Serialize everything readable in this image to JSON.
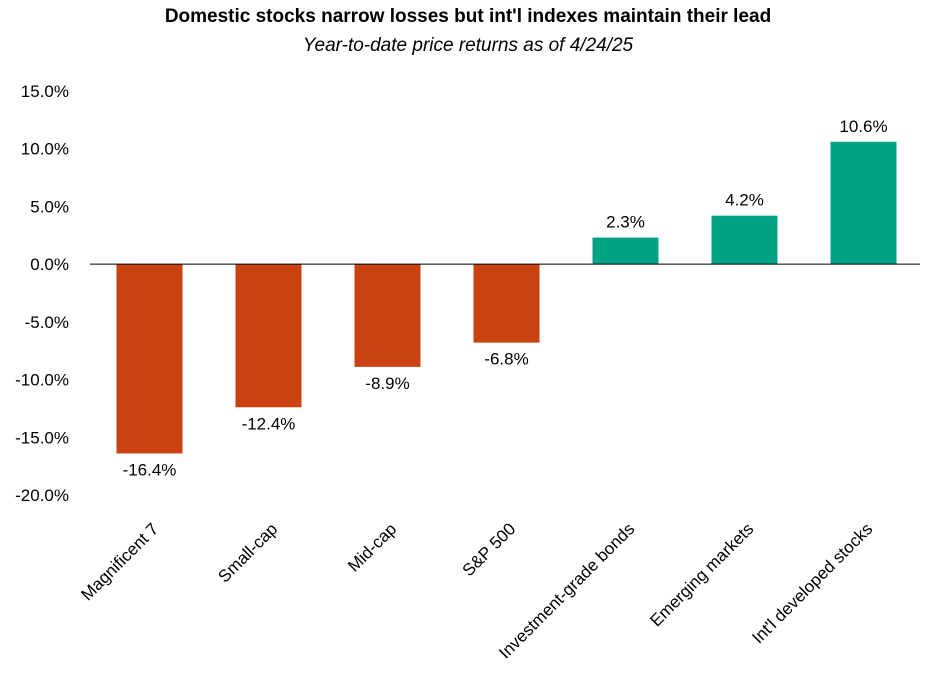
{
  "chart_data": {
    "type": "bar",
    "title": "Domestic stocks narrow losses but int'l indexes maintain their lead",
    "subtitle": "Year-to-date price returns as of 4/24/25",
    "categories": [
      "Magnificent 7",
      "Small-cap",
      "Mid-cap",
      "S&P 500",
      "Investment-grade bonds",
      "Emerging markets",
      "Int'l developed stocks"
    ],
    "values": [
      -16.4,
      -12.4,
      -8.9,
      -6.8,
      2.3,
      4.2,
      10.6
    ],
    "value_labels": [
      "-16.4%",
      "-12.4%",
      "-8.9%",
      "-6.8%",
      "2.3%",
      "4.2%",
      "10.6%"
    ],
    "ylim": [
      -20,
      15
    ],
    "y_ticks": [
      15,
      10,
      5,
      0,
      -5,
      -10,
      -15,
      -20
    ],
    "y_tick_labels": [
      "15.0%",
      "10.0%",
      "5.0%",
      "0.0%",
      "-5.0%",
      "-10.0%",
      "-15.0%",
      "-20.0%"
    ],
    "grid": false,
    "colors": {
      "negative": "#C9420F",
      "positive": "#00A385",
      "axis": "#000000"
    }
  }
}
